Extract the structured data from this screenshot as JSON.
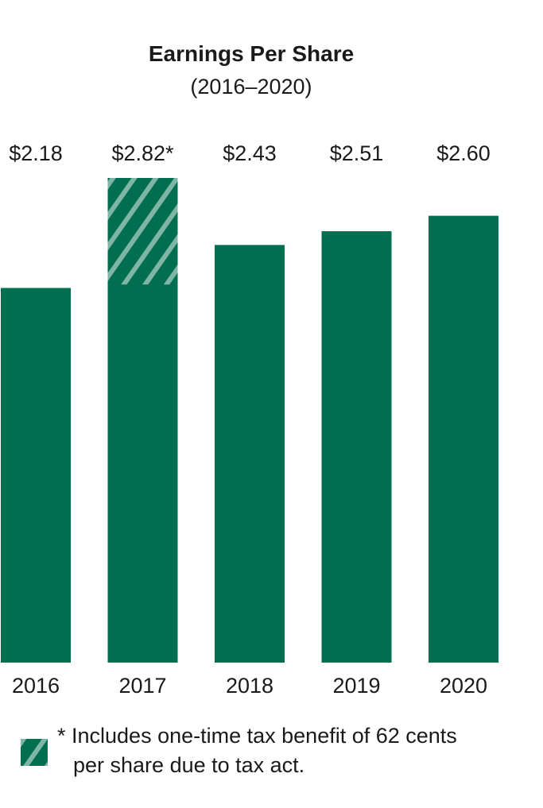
{
  "header": {
    "title": "Earnings Per Share",
    "subtitle": "(2016–2020)"
  },
  "colors": {
    "bar": "#006e4f",
    "hatch": "#7fb5a4",
    "text": "#1a1a1a"
  },
  "chart_data": {
    "type": "bar",
    "title": "Earnings Per Share",
    "subtitle": "(2016–2020)",
    "categories": [
      "2016",
      "2017",
      "2018",
      "2019",
      "2020"
    ],
    "values": [
      2.18,
      2.82,
      2.43,
      2.51,
      2.6
    ],
    "value_labels": [
      "$2.18",
      "$2.82*",
      "$2.43",
      "$2.51",
      "$2.60"
    ],
    "one_time_benefit": {
      "category": "2017",
      "value": 0.62
    },
    "xlabel": "",
    "ylabel": "",
    "ylim": [
      0,
      2.82
    ],
    "grid": false
  },
  "legend": {
    "text_line1": "* Includes one-time tax benefit of 62 cents",
    "text_line2": "per share due to tax act."
  }
}
